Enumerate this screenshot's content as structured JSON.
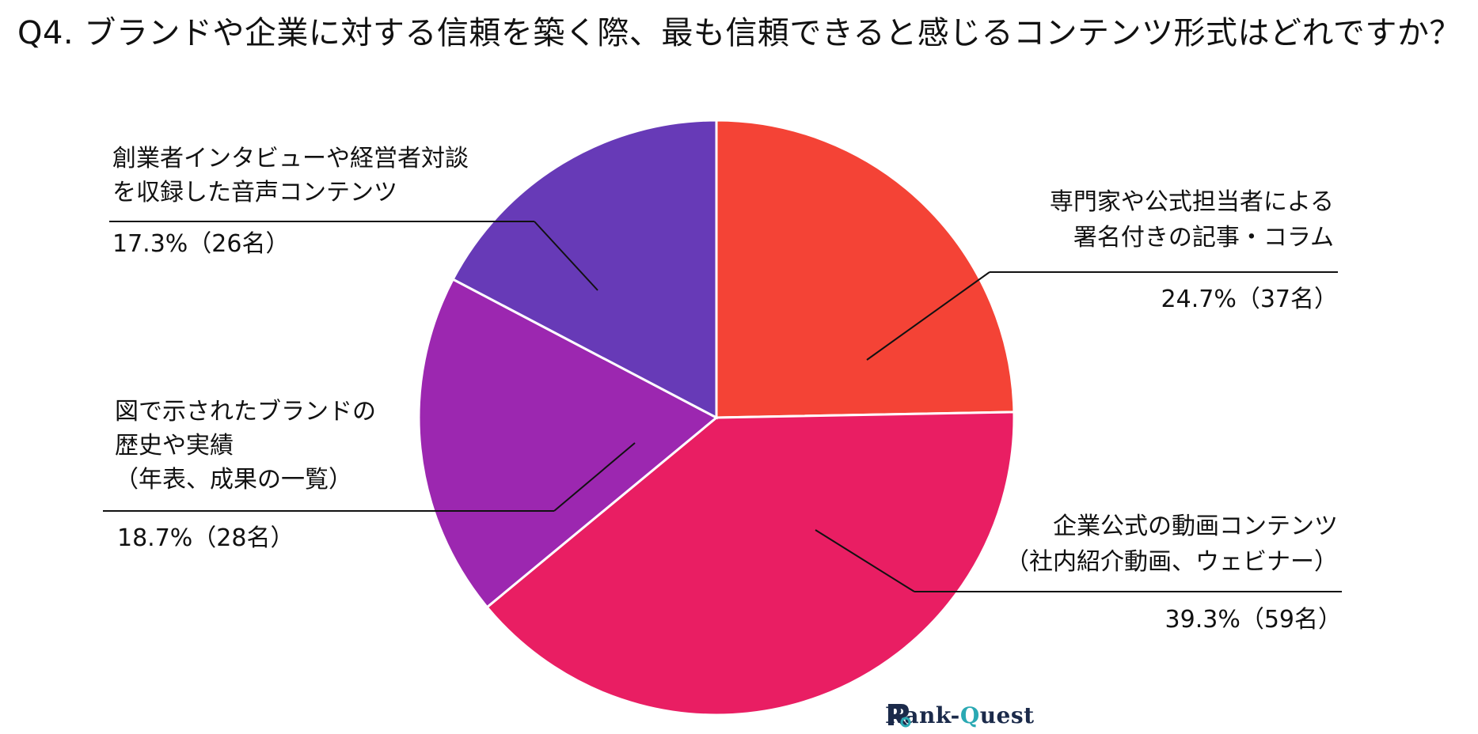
{
  "title": "Q4. ブランドや企業に対する信頼を築く際、最も信頼できると感じるコンテンツ形式はどれですか？",
  "chart_data": {
    "type": "pie",
    "title": "Q4. ブランドや企業に対する信頼を築く際、最も信頼できると感じるコンテンツ形式はどれですか？",
    "start_angle_deg": 0,
    "direction": "clockwise",
    "slices": [
      {
        "label_lines": [
          "専門家や公式担当者による",
          "署名付きの記事・コラム"
        ],
        "value": 24.7,
        "count": 37,
        "percent_text": "24.7%（37名）",
        "color": "#F44336"
      },
      {
        "label_lines": [
          "企業公式の動画コンテンツ",
          "（社内紹介動画、ウェビナー）"
        ],
        "value": 39.3,
        "count": 59,
        "percent_text": "39.3%（59名）",
        "color": "#E91E63"
      },
      {
        "label_lines": [
          "図で示されたブランドの",
          "歴史や実績",
          "（年表、成果の一覧）"
        ],
        "value": 18.7,
        "count": 28,
        "percent_text": "18.7%（28名）",
        "color": "#9C27B0"
      },
      {
        "label_lines": [
          "創業者インタビューや経営者対談",
          "を収録した音声コンテンツ"
        ],
        "value": 17.3,
        "count": 26,
        "percent_text": "17.3%（26名）",
        "color": "#673AB7"
      }
    ]
  },
  "logo": {
    "text_main": "Rank-",
    "text_accent": "Q",
    "text_rest": "uest",
    "icon": "rank-quest-logo-icon",
    "colors": {
      "dark": "#1b2a4a",
      "accent": "#2aa9b3"
    }
  }
}
